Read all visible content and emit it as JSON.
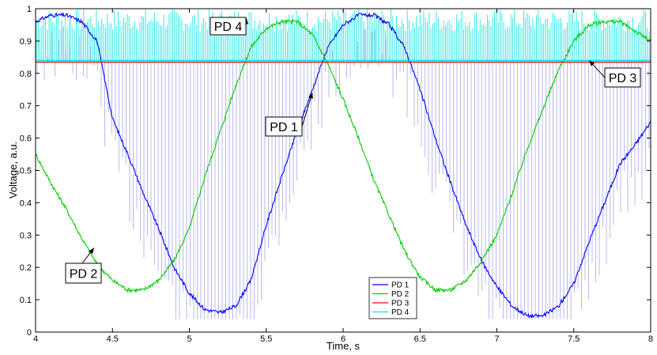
{
  "chart_data": {
    "type": "line",
    "xlabel": "Time, s",
    "ylabel": "Voltage, a.u.",
    "xlim": [
      4,
      8
    ],
    "ylim": [
      0,
      1
    ],
    "xticks": [
      4,
      4.5,
      5,
      5.5,
      6,
      6.5,
      7,
      7.5,
      8
    ],
    "xtick_labels": [
      "4",
      "4.5",
      "5",
      "5.5",
      "6",
      "6.5",
      "7",
      "7.5",
      "8"
    ],
    "yticks": [
      0,
      0.1,
      0.2,
      0.3,
      0.4,
      0.5,
      0.6,
      0.7,
      0.8,
      0.9,
      1
    ],
    "ytick_labels": [
      "0",
      "0.1",
      "0.2",
      "0.3",
      "0.4",
      "0.5",
      "0.6",
      "0.7",
      "0.8",
      "0.9",
      "1"
    ],
    "grid": false,
    "legend_position": "bottom-center",
    "series": [
      {
        "name": "PD 1",
        "color": "#0000ff",
        "x": [
          4.0,
          4.1,
          4.2,
          4.3,
          4.4,
          4.5,
          4.6,
          4.7,
          4.8,
          4.9,
          5.0,
          5.1,
          5.2,
          5.3,
          5.4,
          5.5,
          5.6,
          5.7,
          5.8,
          5.9,
          6.0,
          6.1,
          6.2,
          6.3,
          6.4,
          6.5,
          6.6,
          6.7,
          6.8,
          6.9,
          7.0,
          7.1,
          7.2,
          7.3,
          7.4,
          7.5,
          7.6,
          7.7,
          7.8,
          7.9,
          8.0
        ],
        "y": [
          0.96,
          0.98,
          0.98,
          0.96,
          0.9,
          0.66,
          0.55,
          0.43,
          0.32,
          0.2,
          0.12,
          0.07,
          0.06,
          0.08,
          0.16,
          0.33,
          0.48,
          0.62,
          0.75,
          0.88,
          0.95,
          0.98,
          0.98,
          0.95,
          0.88,
          0.75,
          0.6,
          0.46,
          0.33,
          0.22,
          0.14,
          0.08,
          0.05,
          0.05,
          0.08,
          0.15,
          0.28,
          0.4,
          0.52,
          0.58,
          0.65
        ]
      },
      {
        "name": "PD 2",
        "color": "#00cc00",
        "x": [
          4.0,
          4.1,
          4.2,
          4.3,
          4.4,
          4.5,
          4.6,
          4.7,
          4.8,
          4.9,
          5.0,
          5.1,
          5.2,
          5.3,
          5.4,
          5.5,
          5.6,
          5.7,
          5.8,
          5.9,
          6.0,
          6.1,
          6.2,
          6.3,
          6.4,
          6.5,
          6.6,
          6.7,
          6.8,
          6.9,
          7.0,
          7.1,
          7.2,
          7.3,
          7.4,
          7.5,
          7.6,
          7.7,
          7.8,
          7.9,
          8.0
        ],
        "y": [
          0.55,
          0.46,
          0.38,
          0.29,
          0.21,
          0.16,
          0.13,
          0.13,
          0.16,
          0.22,
          0.32,
          0.48,
          0.62,
          0.76,
          0.88,
          0.94,
          0.96,
          0.96,
          0.92,
          0.83,
          0.72,
          0.6,
          0.47,
          0.36,
          0.25,
          0.17,
          0.13,
          0.13,
          0.16,
          0.22,
          0.3,
          0.43,
          0.57,
          0.69,
          0.81,
          0.9,
          0.95,
          0.96,
          0.96,
          0.93,
          0.9
        ]
      },
      {
        "name": "PD 3",
        "color": "#ff0000",
        "x": [
          4.0,
          8.0
        ],
        "y": [
          0.835,
          0.835
        ]
      },
      {
        "name": "PD 4",
        "color": "#00e5e5",
        "x": [
          4.0,
          8.0
        ],
        "y": [
          0.84,
          0.84
        ]
      }
    ],
    "annotations": [
      {
        "text": "PD 4",
        "target": [
          5.37,
          0.97
        ]
      },
      {
        "text": "PD 3",
        "target": [
          7.6,
          0.84
        ]
      },
      {
        "text": "PD 1",
        "target": [
          5.8,
          0.74
        ]
      },
      {
        "text": "PD 2",
        "target": [
          4.38,
          0.26
        ]
      }
    ]
  }
}
